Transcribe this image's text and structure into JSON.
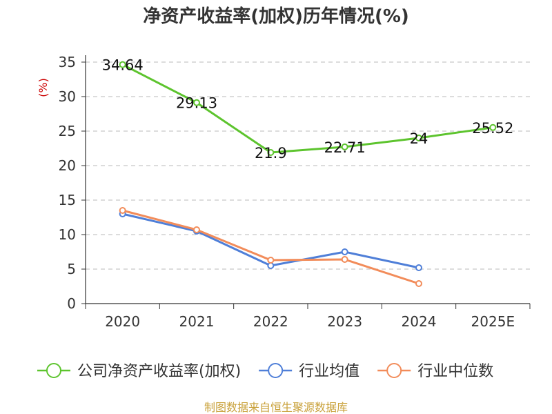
{
  "chart_data": {
    "type": "line",
    "title": "净资产收益率(加权)历年情况(%)",
    "ylabel": "(%)",
    "xlabel": "",
    "categories": [
      "2020",
      "2021",
      "2022",
      "2023",
      "2024",
      "2025E"
    ],
    "ylim": [
      0,
      35
    ],
    "yticks": [
      0,
      5,
      10,
      15,
      20,
      25,
      30,
      35
    ],
    "grid": "horizontal-dashed",
    "legend_position": "bottom",
    "series": [
      {
        "name": "公司净资产收益率(加权)",
        "color": "#5dc42e",
        "values": [
          34.64,
          29.13,
          21.9,
          22.71,
          24,
          25.52
        ],
        "labels": [
          "34.64",
          "29.13",
          "21.9",
          "22.71",
          "24",
          "25.52"
        ]
      },
      {
        "name": "行业均值",
        "color": "#4f7fd8",
        "values": [
          13.0,
          10.5,
          5.5,
          7.5,
          5.2,
          null
        ]
      },
      {
        "name": "行业中位数",
        "color": "#f28c5a",
        "values": [
          13.5,
          10.7,
          6.3,
          6.4,
          2.9,
          null
        ]
      }
    ],
    "source": "制图数据来自恒生聚源数据库"
  }
}
